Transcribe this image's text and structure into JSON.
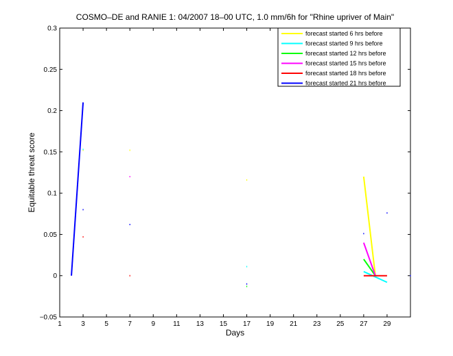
{
  "chart_data": {
    "type": "line",
    "title": "COSMO–DE and RANIE 1: 04/2007 18–00 UTC, 1.0 mm/6h for \"Rhine upriver of Main\"",
    "xlabel": "Days",
    "ylabel": "Equitable threat score",
    "xlim": [
      1,
      31
    ],
    "ylim": [
      -0.05,
      0.3
    ],
    "xticks": [
      "1",
      "3",
      "5",
      "7",
      "9",
      "11",
      "13",
      "15",
      "17",
      "19",
      "21",
      "23",
      "25",
      "27",
      "29"
    ],
    "xtick_values": [
      1,
      3,
      5,
      7,
      9,
      11,
      13,
      15,
      17,
      19,
      21,
      23,
      25,
      27,
      29
    ],
    "yticks": [
      "−0.05",
      "0",
      "0.05",
      "0.1",
      "0.15",
      "0.2",
      "0.25",
      "0.3"
    ],
    "ytick_values": [
      -0.05,
      0,
      0.05,
      0.1,
      0.15,
      0.2,
      0.25,
      0.3
    ],
    "grid": false,
    "legend_position": "top-right",
    "series": [
      {
        "name": "forecast started 6 hrs before",
        "color": "#ffff00",
        "segments": [
          [
            [
              3.0,
              0.152
            ]
          ],
          [
            [
              7.0,
              0.152
            ]
          ],
          [
            [
              17.0,
              0.116
            ]
          ],
          [
            [
              27.0,
              0.12
            ],
            [
              28.0,
              0.0
            ]
          ]
        ]
      },
      {
        "name": "forecast started 9 hrs before",
        "color": "#00ffff",
        "segments": [
          [
            [
              3.0,
              0.153
            ]
          ],
          [
            [
              17.0,
              0.011
            ]
          ],
          [
            [
              27.0,
              0.005
            ],
            [
              29.0,
              -0.008
            ]
          ]
        ]
      },
      {
        "name": "forecast started 12 hrs before",
        "color": "#00ff00",
        "segments": [
          [
            [
              17.0,
              -0.013
            ]
          ],
          [
            [
              27.0,
              0.02
            ],
            [
              28.0,
              0.0
            ]
          ]
        ]
      },
      {
        "name": "forecast started 15 hrs before",
        "color": "#ff00ff",
        "segments": [
          [
            [
              7.0,
              0.12
            ]
          ],
          [
            [
              27.0,
              0.04
            ],
            [
              28.0,
              0.0
            ]
          ]
        ]
      },
      {
        "name": "forecast started 18 hrs before",
        "color": "#ff0000",
        "segments": [
          [
            [
              3.0,
              0.047
            ]
          ],
          [
            [
              7.0,
              0.0
            ]
          ],
          [
            [
              27.0,
              0.0
            ],
            [
              29.0,
              0.0
            ]
          ]
        ]
      },
      {
        "name": "forecast started 21 hrs before",
        "color": "#0000ff",
        "segments": [
          [
            [
              2.0,
              0.0
            ],
            [
              3.0,
              0.21
            ]
          ],
          [
            [
              3.0,
              0.08
            ]
          ],
          [
            [
              7.0,
              0.062
            ]
          ],
          [
            [
              17.0,
              -0.01
            ]
          ],
          [
            [
              27.0,
              0.051
            ]
          ],
          [
            [
              29.0,
              0.076
            ]
          ],
          [
            [
              31.0,
              0.0
            ]
          ]
        ]
      }
    ]
  }
}
